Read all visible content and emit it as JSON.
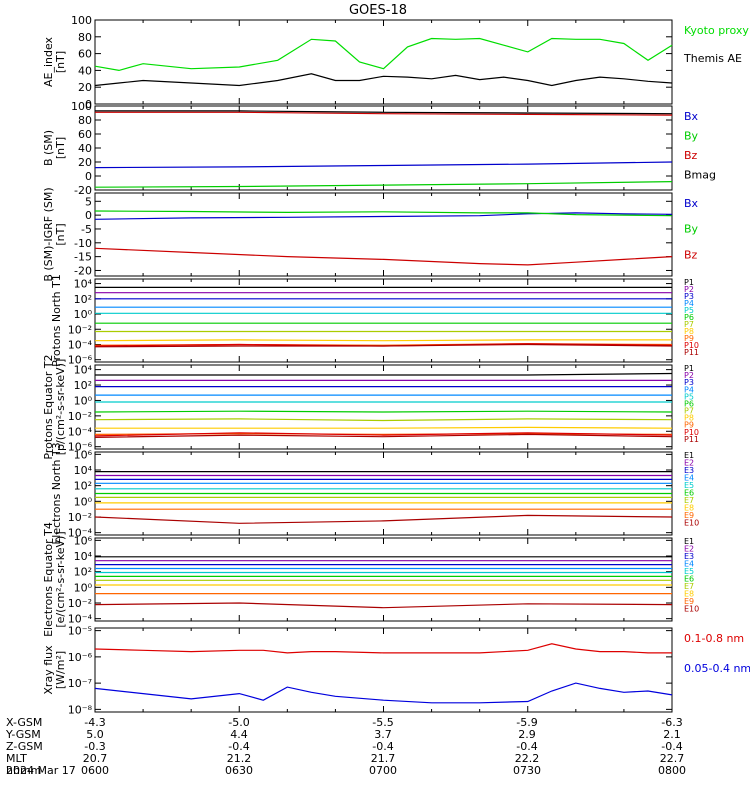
{
  "page_title": "GOES-18",
  "date_label": "2024 Mar 17",
  "time_ticks": [
    "0600",
    "0630",
    "0700",
    "0730",
    "0800"
  ],
  "orbit_table": [
    {
      "label": "X-GSM",
      "values": [
        "-4.3",
        "-5.0",
        "-5.5",
        "-5.9",
        "-6.3"
      ]
    },
    {
      "label": "Y-GSM",
      "values": [
        "5.0",
        "4.4",
        "3.7",
        "2.9",
        "2.1"
      ]
    },
    {
      "label": "Z-GSM",
      "values": [
        "-0.3",
        "-0.4",
        "-0.4",
        "-0.4",
        "-0.4"
      ]
    },
    {
      "label": "MLT",
      "values": [
        "20.7",
        "21.2",
        "21.7",
        "22.2",
        "22.7"
      ]
    },
    {
      "label": "hhmm",
      "values": [
        "0600",
        "0630",
        "0700",
        "0730",
        "0800"
      ]
    }
  ],
  "chart_data": [
    {
      "type": "line",
      "ylabel": "AE_index [nT]",
      "yscale": "linear",
      "ylim": [
        0,
        100
      ],
      "ytick_labels": [
        "100",
        "80",
        "60",
        "40",
        "20",
        "0"
      ],
      "yticks": [
        100,
        80,
        60,
        40,
        20,
        0
      ],
      "x": [
        0,
        5,
        10,
        20,
        30,
        38,
        45,
        50,
        55,
        60,
        65,
        70,
        75,
        80,
        85,
        90,
        95,
        100,
        105,
        110,
        115,
        120
      ],
      "series": [
        {
          "name": "Kyoto proxy AE",
          "color": "#00dd00",
          "values": [
            45,
            40,
            48,
            42,
            44,
            52,
            77,
            75,
            50,
            42,
            68,
            78,
            77,
            78,
            70,
            62,
            78,
            77,
            77,
            72,
            52,
            70
          ]
        },
        {
          "name": "Themis AE",
          "color": "#000000",
          "values": [
            22,
            25,
            28,
            25,
            22,
            28,
            36,
            28,
            28,
            33,
            32,
            30,
            34,
            29,
            32,
            28,
            22,
            28,
            32,
            30,
            27,
            25
          ]
        }
      ]
    },
    {
      "type": "line",
      "ylabel": "B (SM) [nT]",
      "yscale": "linear",
      "ylim": [
        -20,
        100
      ],
      "ytick_labels": [
        "100",
        "80",
        "60",
        "40",
        "20",
        "0",
        "-20"
      ],
      "yticks": [
        100,
        80,
        60,
        40,
        20,
        0,
        -20
      ],
      "x": [
        0,
        30,
        60,
        90,
        120
      ],
      "series": [
        {
          "name": "Bx",
          "color": "#0000cc",
          "values": [
            12,
            13,
            15,
            17,
            20
          ]
        },
        {
          "name": "By",
          "color": "#00cc00",
          "values": [
            -16,
            -15,
            -13,
            -11,
            -8
          ]
        },
        {
          "name": "Bz",
          "color": "#cc0000",
          "values": [
            91,
            91,
            89,
            88,
            87
          ]
        },
        {
          "name": "Bmag",
          "color": "#000000",
          "values": [
            93,
            93,
            91,
            90,
            89
          ]
        }
      ]
    },
    {
      "type": "line",
      "ylabel": "B (SM)-IGRF (SM) [nT]",
      "yscale": "linear",
      "ylim": [
        -22,
        8
      ],
      "ytick_labels": [
        "5",
        "0",
        "-5",
        "-10",
        "-15",
        "-20"
      ],
      "yticks": [
        5,
        0,
        -5,
        -10,
        -15,
        -20
      ],
      "x": [
        0,
        20,
        40,
        60,
        80,
        90,
        100,
        110,
        120
      ],
      "series": [
        {
          "name": "Bx",
          "color": "#0000cc",
          "values": [
            -1.5,
            -1.0,
            -0.8,
            -0.5,
            -0.2,
            0.5,
            0.8,
            0.5,
            0.3
          ]
        },
        {
          "name": "By",
          "color": "#00cc00",
          "values": [
            1.5,
            1.3,
            1.0,
            1.2,
            0.8,
            0.8,
            0.2,
            0.0,
            -0.2
          ]
        },
        {
          "name": "Bz",
          "color": "#cc0000",
          "values": [
            -12,
            -13.5,
            -15,
            -16,
            -17.5,
            -18,
            -17,
            -16,
            -15
          ]
        }
      ]
    },
    {
      "type": "line",
      "ylabel": "Protons North T1",
      "yscale": "log",
      "ylim": [
        -6.3,
        4.6
      ],
      "ytick_labels": [
        "10⁴",
        "10²",
        "10⁰",
        "10⁻²",
        "10⁻⁴",
        "10⁻⁶"
      ],
      "yticks": [
        4,
        2,
        0,
        -2,
        -4,
        -6
      ],
      "x": [
        0,
        30,
        60,
        90,
        120
      ],
      "series": [
        {
          "name": "P1",
          "color": "#000000",
          "values": [
            3.5,
            3.5,
            3.5,
            3.5,
            3.5
          ]
        },
        {
          "name": "P2",
          "color": "#8800aa",
          "values": [
            2.8,
            2.8,
            2.8,
            2.8,
            2.8
          ]
        },
        {
          "name": "P3",
          "color": "#0000cc",
          "values": [
            2.0,
            2.0,
            2.0,
            2.0,
            2.0
          ]
        },
        {
          "name": "P4",
          "color": "#0088ff",
          "values": [
            0.9,
            0.9,
            0.9,
            0.9,
            0.9
          ]
        },
        {
          "name": "P5",
          "color": "#00cccc",
          "values": [
            0.1,
            0.1,
            0.1,
            0.1,
            0.1
          ]
        },
        {
          "name": "P6",
          "color": "#00cc00",
          "values": [
            -1.2,
            -1.2,
            -1.2,
            -1.2,
            -1.2
          ]
        },
        {
          "name": "P7",
          "color": "#aacc00",
          "values": [
            -2.3,
            -2.3,
            -2.3,
            -2.3,
            -2.3
          ]
        },
        {
          "name": "P8",
          "color": "#ffcc00",
          "values": [
            -3.5,
            -3.4,
            -3.5,
            -3.4,
            -3.4
          ]
        },
        {
          "name": "P9",
          "color": "#ff6600",
          "values": [
            -4.1,
            -4.0,
            -4.1,
            -3.9,
            -4.0
          ]
        },
        {
          "name": "P10",
          "color": "#dd0000",
          "values": [
            -4.2,
            -4.0,
            -4.2,
            -3.9,
            -4.1
          ]
        },
        {
          "name": "P11",
          "color": "#aa0000",
          "values": [
            -4.3,
            -4.2,
            -4.2,
            -4.0,
            -4.2
          ]
        }
      ]
    },
    {
      "type": "line",
      "ylabel": "Protons Equator T2 [p/(cm²-s-sr-keV)]",
      "yscale": "log",
      "ylim": [
        -6.3,
        4.6
      ],
      "ytick_labels": [
        "10⁴",
        "10²",
        "10⁰",
        "10⁻²",
        "10⁻⁴",
        "10⁻⁶"
      ],
      "yticks": [
        4,
        2,
        0,
        -2,
        -4,
        -6
      ],
      "x": [
        0,
        30,
        60,
        90,
        120
      ],
      "series": [
        {
          "name": "P1",
          "color": "#000000",
          "values": [
            3.3,
            3.3,
            3.3,
            3.3,
            3.5
          ]
        },
        {
          "name": "P2",
          "color": "#8800aa",
          "values": [
            2.6,
            2.6,
            2.6,
            2.6,
            2.6
          ]
        },
        {
          "name": "P3",
          "color": "#0000cc",
          "values": [
            1.8,
            1.8,
            1.8,
            1.8,
            1.8
          ]
        },
        {
          "name": "P4",
          "color": "#0088ff",
          "values": [
            0.7,
            0.7,
            0.7,
            0.7,
            0.7
          ]
        },
        {
          "name": "P5",
          "color": "#00cccc",
          "values": [
            -0.2,
            -0.2,
            -0.2,
            -0.2,
            -0.2
          ]
        },
        {
          "name": "P6",
          "color": "#00cc00",
          "values": [
            -1.5,
            -1.4,
            -1.5,
            -1.4,
            -1.5
          ]
        },
        {
          "name": "P7",
          "color": "#aacc00",
          "values": [
            -2.5,
            -2.4,
            -2.6,
            -2.4,
            -2.5
          ]
        },
        {
          "name": "P8",
          "color": "#ffcc00",
          "values": [
            -3.6,
            -3.6,
            -3.6,
            -3.5,
            -3.6
          ]
        },
        {
          "name": "P9",
          "color": "#ff6600",
          "values": [
            -4.4,
            -4.3,
            -4.4,
            -4.3,
            -4.4
          ]
        },
        {
          "name": "P10",
          "color": "#dd0000",
          "values": [
            -4.6,
            -4.2,
            -4.5,
            -4.2,
            -4.5
          ]
        },
        {
          "name": "P11",
          "color": "#aa0000",
          "values": [
            -4.8,
            -4.5,
            -4.7,
            -4.4,
            -4.7
          ]
        }
      ]
    },
    {
      "type": "line",
      "ylabel": "Electrons North T3",
      "yscale": "log",
      "ylim": [
        -4.3,
        6.3
      ],
      "ytick_labels": [
        "10⁶",
        "10⁴",
        "10²",
        "10⁰",
        "10⁻²",
        "10⁻⁴"
      ],
      "yticks": [
        6,
        4,
        2,
        0,
        -2,
        -4
      ],
      "x": [
        0,
        30,
        60,
        90,
        120
      ],
      "series": [
        {
          "name": "E1",
          "color": "#000000",
          "values": [
            3.8,
            3.8,
            3.8,
            3.8,
            3.8
          ]
        },
        {
          "name": "E2",
          "color": "#8800aa",
          "values": [
            3.3,
            3.3,
            3.3,
            3.3,
            3.3
          ]
        },
        {
          "name": "E3",
          "color": "#0000cc",
          "values": [
            2.8,
            2.8,
            2.8,
            2.8,
            2.8
          ]
        },
        {
          "name": "E4",
          "color": "#0088ff",
          "values": [
            2.3,
            2.3,
            2.3,
            2.3,
            2.3
          ]
        },
        {
          "name": "E5",
          "color": "#00cccc",
          "values": [
            1.6,
            1.6,
            1.6,
            1.6,
            1.6
          ]
        },
        {
          "name": "E6",
          "color": "#00cc00",
          "values": [
            1.0,
            1.0,
            1.0,
            1.0,
            1.0
          ]
        },
        {
          "name": "E7",
          "color": "#aacc00",
          "values": [
            0.5,
            0.5,
            0.5,
            0.5,
            0.5
          ]
        },
        {
          "name": "E8",
          "color": "#ffcc00",
          "values": [
            -0.2,
            -0.2,
            -0.2,
            -0.2,
            -0.2
          ]
        },
        {
          "name": "E9",
          "color": "#ff6600",
          "values": [
            -1.0,
            -1.0,
            -1.0,
            -1.0,
            -1.0
          ]
        },
        {
          "name": "E10",
          "color": "#aa0000",
          "values": [
            -2.0,
            -2.8,
            -2.5,
            -1.8,
            -2.0
          ]
        }
      ]
    },
    {
      "type": "line",
      "ylabel": "Electrons Equator T4 [e/(cm²-s-sr-keV)]",
      "yscale": "log",
      "ylim": [
        -4.3,
        6.3
      ],
      "ytick_labels": [
        "10⁶",
        "10⁴",
        "10²",
        "10⁰",
        "10⁻²",
        "10⁻⁴"
      ],
      "yticks": [
        6,
        4,
        2,
        0,
        -2,
        -4
      ],
      "x": [
        0,
        30,
        60,
        90,
        120
      ],
      "series": [
        {
          "name": "E1",
          "color": "#000000",
          "values": [
            3.9,
            3.9,
            3.9,
            3.9,
            3.9
          ]
        },
        {
          "name": "E2",
          "color": "#8800aa",
          "values": [
            3.4,
            3.4,
            3.4,
            3.4,
            3.4
          ]
        },
        {
          "name": "E3",
          "color": "#0000cc",
          "values": [
            2.9,
            2.9,
            2.9,
            2.9,
            2.9
          ]
        },
        {
          "name": "E4",
          "color": "#0088ff",
          "values": [
            2.4,
            2.4,
            2.4,
            2.4,
            2.4
          ]
        },
        {
          "name": "E5",
          "color": "#00cccc",
          "values": [
            1.9,
            1.9,
            1.9,
            1.9,
            1.9
          ]
        },
        {
          "name": "E6",
          "color": "#00cc00",
          "values": [
            1.4,
            1.4,
            1.4,
            1.4,
            1.4
          ]
        },
        {
          "name": "E7",
          "color": "#aacc00",
          "values": [
            0.9,
            0.9,
            0.9,
            0.9,
            0.9
          ]
        },
        {
          "name": "E8",
          "color": "#ffcc00",
          "values": [
            0.3,
            0.3,
            0.3,
            0.3,
            0.3
          ]
        },
        {
          "name": "E9",
          "color": "#ff6600",
          "values": [
            -0.8,
            -0.8,
            -0.8,
            -0.8,
            -0.8
          ]
        },
        {
          "name": "E10",
          "color": "#aa0000",
          "values": [
            -2.2,
            -2.0,
            -2.6,
            -2.1,
            -2.2
          ]
        }
      ]
    },
    {
      "type": "line",
      "ylabel": "Xray flux [W/m²]",
      "yscale": "log",
      "ylim": [
        -8.1,
        -4.9
      ],
      "ytick_labels": [
        "10⁻⁵",
        "10⁻⁶",
        "10⁻⁷",
        "10⁻⁸"
      ],
      "yticks": [
        -5,
        -6,
        -7,
        -8
      ],
      "x": [
        0,
        10,
        20,
        30,
        35,
        40,
        45,
        50,
        60,
        70,
        80,
        90,
        95,
        100,
        105,
        110,
        115,
        120
      ],
      "series": [
        {
          "name": "0.1-0.8 nm",
          "color": "#dd0000",
          "values": [
            -5.7,
            -5.75,
            -5.8,
            -5.75,
            -5.75,
            -5.85,
            -5.8,
            -5.8,
            -5.85,
            -5.85,
            -5.85,
            -5.75,
            -5.5,
            -5.7,
            -5.8,
            -5.8,
            -5.85,
            -5.85
          ]
        },
        {
          "name": "0.05-0.4 nm",
          "color": "#0000dd",
          "values": [
            -7.2,
            -7.4,
            -7.6,
            -7.4,
            -7.65,
            -7.15,
            -7.35,
            -7.5,
            -7.65,
            -7.75,
            -7.75,
            -7.7,
            -7.3,
            -7.0,
            -7.2,
            -7.35,
            -7.3,
            -7.45
          ]
        }
      ]
    }
  ]
}
